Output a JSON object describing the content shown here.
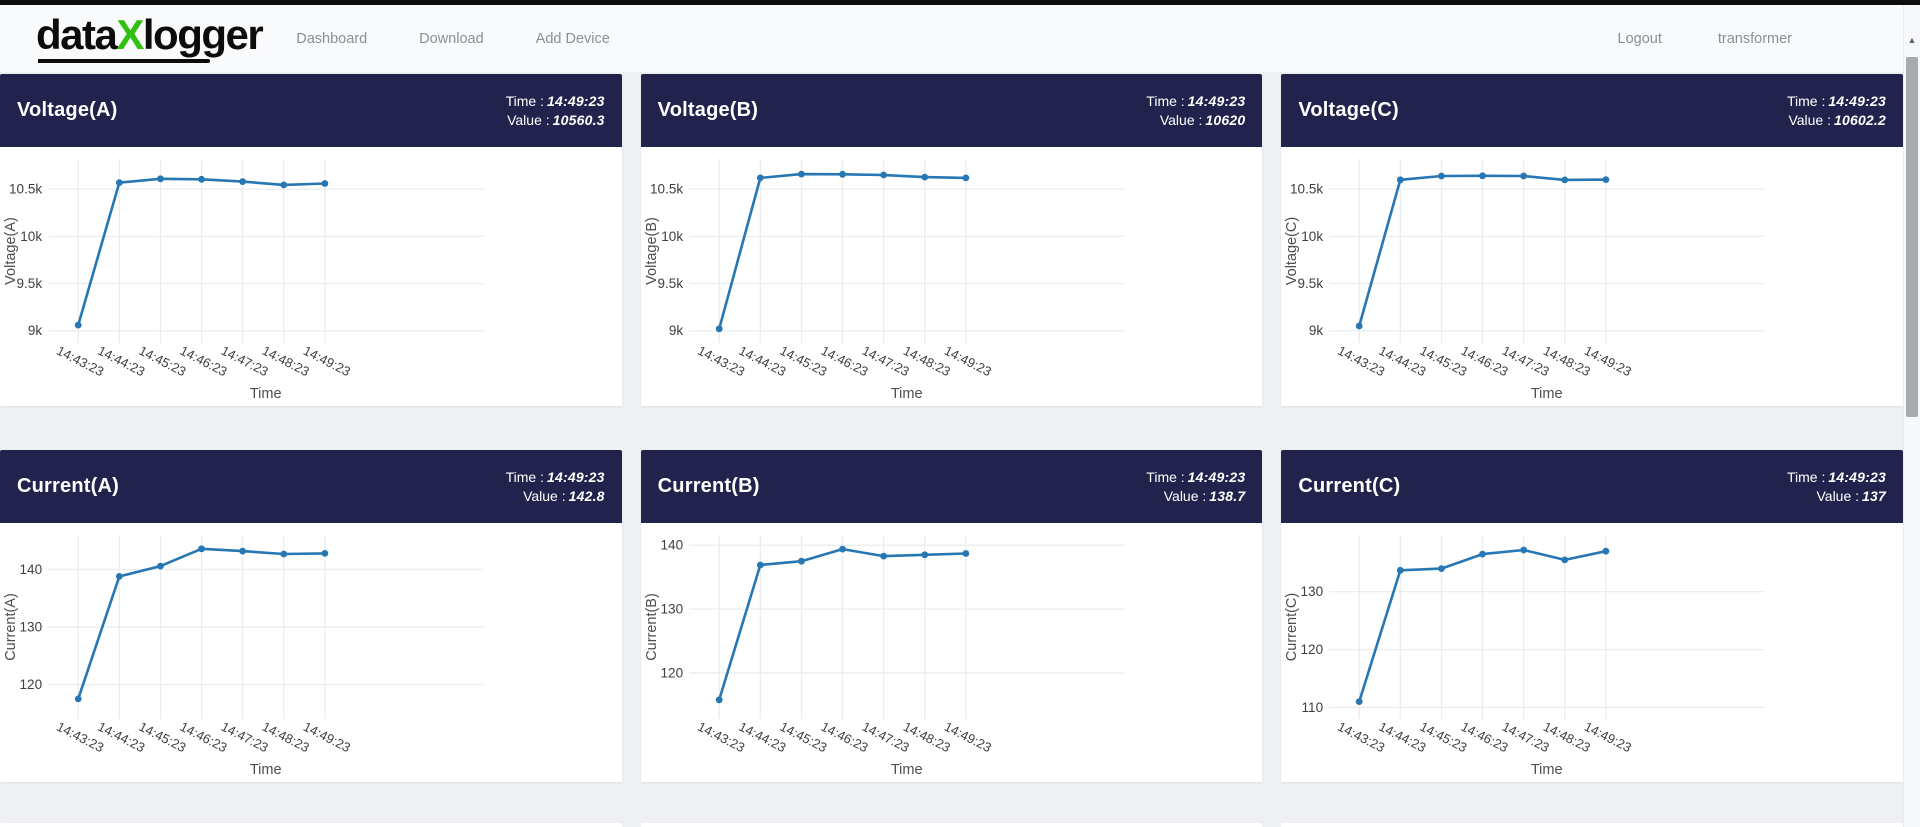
{
  "header": {
    "logo": {
      "part1": "data",
      "accent": "X",
      "part2": "logger"
    },
    "nav": [
      {
        "label": "Dashboard"
      },
      {
        "label": "Download"
      },
      {
        "label": "Add Device"
      }
    ],
    "right": [
      {
        "label": "Logout"
      },
      {
        "label": "transformer"
      }
    ]
  },
  "colors": {
    "accent_green": "#2fc10e",
    "card_header_bg": "#22234d",
    "line": "#2677b4",
    "grid": "#e9ebee",
    "tick_text": "#3f3f3f",
    "axis_title_text": "#4d4d4d",
    "page_bg": "#eef0f3"
  },
  "chart_data": [
    {
      "type": "line",
      "title": "Voltage(A)",
      "header": {
        "time_label": "Time :",
        "time": "14:49:23",
        "value_label": "Value :",
        "value": "10560.3"
      },
      "x": [
        "14:43:23",
        "14:44:23",
        "14:45:23",
        "14:46:23",
        "14:47:23",
        "14:48:23",
        "14:49:23"
      ],
      "values": [
        9060,
        10570,
        10610,
        10605,
        10580,
        10545,
        10560.3
      ],
      "xlabel": "Time",
      "ylabel": "Voltage(A)",
      "yticks": [
        9000,
        9500,
        10000,
        10500
      ],
      "ytick_labels": [
        "9k",
        "9.5k",
        "10k",
        "10.5k"
      ],
      "ylim": [
        8870,
        10820
      ],
      "grid": true,
      "legend": "none"
    },
    {
      "type": "line",
      "title": "Voltage(B)",
      "header": {
        "time_label": "Time :",
        "time": "14:49:23",
        "value_label": "Value :",
        "value": "10620"
      },
      "x": [
        "14:43:23",
        "14:44:23",
        "14:45:23",
        "14:46:23",
        "14:47:23",
        "14:48:23",
        "14:49:23"
      ],
      "values": [
        9020,
        10620,
        10660,
        10658,
        10650,
        10628,
        10620
      ],
      "xlabel": "Time",
      "ylabel": "Voltage(B)",
      "yticks": [
        9000,
        9500,
        10000,
        10500
      ],
      "ytick_labels": [
        "9k",
        "9.5k",
        "10k",
        "10.5k"
      ],
      "ylim": [
        8870,
        10820
      ],
      "grid": true,
      "legend": "none"
    },
    {
      "type": "line",
      "title": "Voltage(C)",
      "header": {
        "time_label": "Time :",
        "time": "14:49:23",
        "value_label": "Value :",
        "value": "10602.2"
      },
      "x": [
        "14:43:23",
        "14:44:23",
        "14:45:23",
        "14:46:23",
        "14:47:23",
        "14:48:23",
        "14:49:23"
      ],
      "values": [
        9050,
        10600,
        10640,
        10642,
        10640,
        10598,
        10602.2
      ],
      "xlabel": "Time",
      "ylabel": "Voltage(C)",
      "yticks": [
        9000,
        9500,
        10000,
        10500
      ],
      "ytick_labels": [
        "9k",
        "9.5k",
        "10k",
        "10.5k"
      ],
      "ylim": [
        8870,
        10820
      ],
      "grid": true,
      "legend": "none"
    },
    {
      "type": "line",
      "title": "Current(A)",
      "header": {
        "time_label": "Time :",
        "time": "14:49:23",
        "value_label": "Value :",
        "value": "142.8"
      },
      "x": [
        "14:43:23",
        "14:44:23",
        "14:45:23",
        "14:46:23",
        "14:47:23",
        "14:48:23",
        "14:49:23"
      ],
      "values": [
        117.5,
        138.8,
        140.6,
        143.6,
        143.2,
        142.7,
        142.8
      ],
      "xlabel": "Time",
      "ylabel": "Current(A)",
      "yticks": [
        120,
        130,
        140
      ],
      "ytick_labels": [
        "120",
        "130",
        "140"
      ],
      "ylim": [
        114,
        146
      ],
      "grid": true,
      "legend": "none"
    },
    {
      "type": "line",
      "title": "Current(B)",
      "header": {
        "time_label": "Time :",
        "time": "14:49:23",
        "value_label": "Value :",
        "value": "138.7"
      },
      "x": [
        "14:43:23",
        "14:44:23",
        "14:45:23",
        "14:46:23",
        "14:47:23",
        "14:48:23",
        "14:49:23"
      ],
      "values": [
        115.8,
        136.9,
        137.5,
        139.4,
        138.3,
        138.5,
        138.7
      ],
      "xlabel": "Time",
      "ylabel": "Current(B)",
      "yticks": [
        120,
        130,
        140
      ],
      "ytick_labels": [
        "120",
        "130",
        "140"
      ],
      "ylim": [
        112.8,
        141.6
      ],
      "grid": true,
      "legend": "none"
    },
    {
      "type": "line",
      "title": "Current(C)",
      "header": {
        "time_label": "Time :",
        "time": "14:49:23",
        "value_label": "Value :",
        "value": "137"
      },
      "x": [
        "14:43:23",
        "14:44:23",
        "14:45:23",
        "14:46:23",
        "14:47:23",
        "14:48:23",
        "14:49:23"
      ],
      "values": [
        111,
        133.7,
        134,
        136.5,
        137.2,
        135.5,
        137
      ],
      "xlabel": "Time",
      "ylabel": "Current(C)",
      "yticks": [
        110,
        120,
        130
      ],
      "ytick_labels": [
        "110",
        "120",
        "130"
      ],
      "ylim": [
        108,
        139.8
      ],
      "grid": true,
      "legend": "none"
    }
  ],
  "scrollbar": {
    "up_arrow": "▲"
  }
}
